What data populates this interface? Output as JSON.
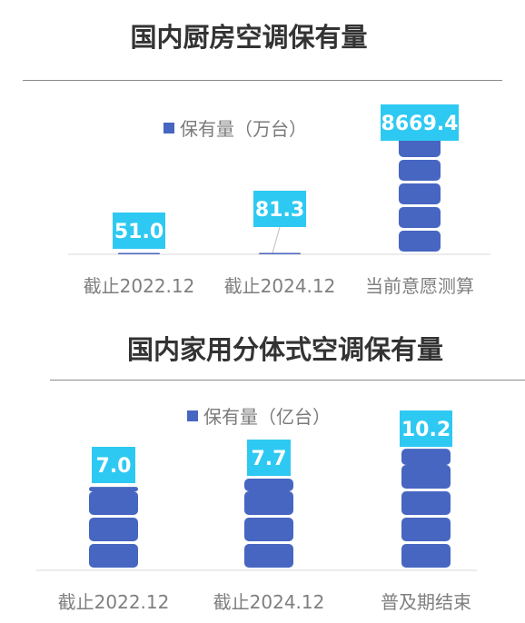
{
  "colors": {
    "bar": "#4766c1",
    "label_bg": "#2ec9f2",
    "label_text": "#ffffff",
    "axis": "#d9d9d9",
    "tick_text": "#7f7f7f"
  },
  "chart_data": [
    {
      "type": "bar",
      "title": "国内厨房空调保有量",
      "legend": "保有量（万台）",
      "series": [
        {
          "name": "保有量（万台）",
          "values": [
            51.0,
            81.3,
            8669.4
          ]
        }
      ],
      "categories": [
        "截止2022.12",
        "截止2024.12",
        "当前意愿测算"
      ],
      "data_labels": [
        "51.0",
        "81.3",
        "8669.4"
      ],
      "ylim": [
        0,
        9200
      ],
      "legend_position": "top",
      "grid": false
    },
    {
      "type": "bar",
      "title": "国内家用分体式空调保有量",
      "legend": "保有量（亿台）",
      "series": [
        {
          "name": "保有量（亿台）",
          "values": [
            7.0,
            7.7,
            10.2
          ]
        }
      ],
      "categories": [
        "截止2022.12",
        "截止2024.12",
        "普及期结束"
      ],
      "data_labels": [
        "7.0",
        "7.7",
        "10.2"
      ],
      "ylim": [
        0,
        10.9
      ],
      "legend_position": "top",
      "grid": false
    }
  ]
}
